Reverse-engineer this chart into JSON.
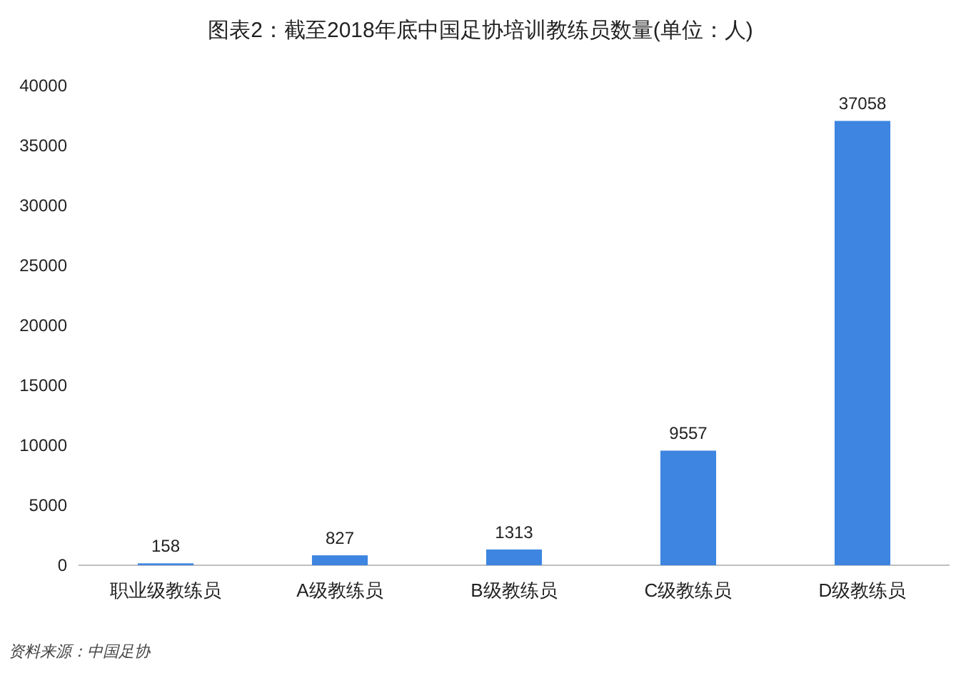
{
  "chart_data": {
    "type": "bar",
    "title": "图表2：截至2018年底中国足协培训教练员数量(单位：人)",
    "categories": [
      "职业级教练员",
      "A级教练员",
      "B级教练员",
      "C级教练员",
      "D级教练员"
    ],
    "values": [
      158,
      827,
      1313,
      9557,
      37058
    ],
    "color": "#3d85e0",
    "ylim": [
      0,
      40000
    ],
    "yticks": [
      0,
      5000,
      10000,
      15000,
      20000,
      25000,
      30000,
      35000,
      40000
    ],
    "data_labels": true,
    "annotations": [
      "资料来源：中国足协"
    ]
  }
}
